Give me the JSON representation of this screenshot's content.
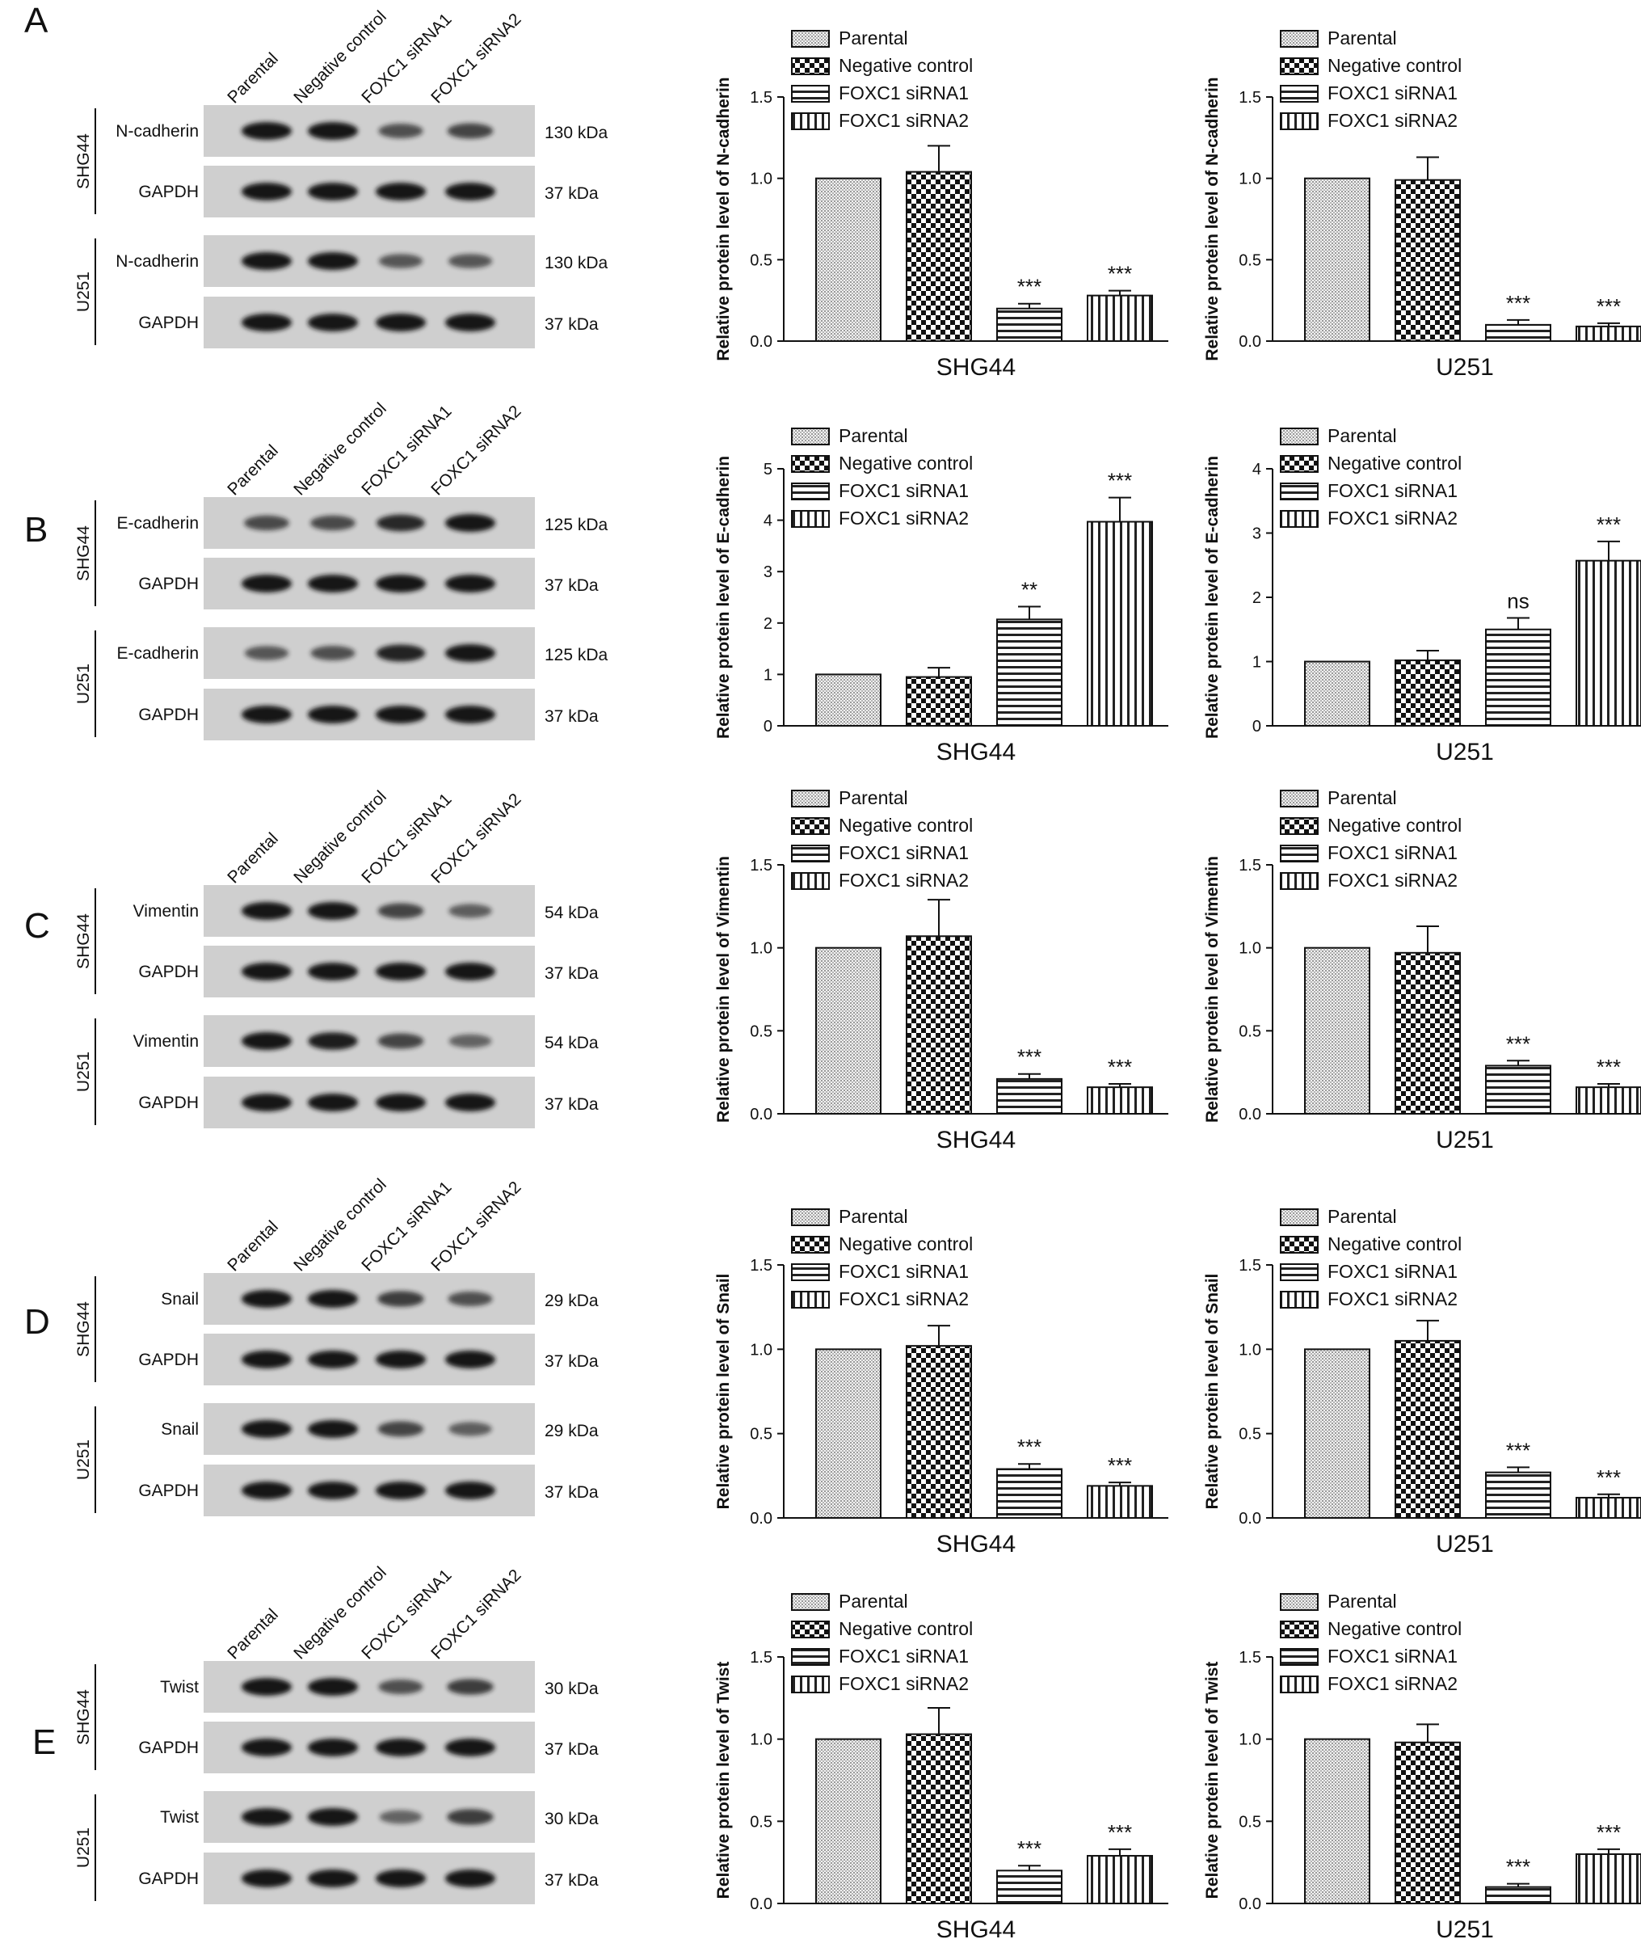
{
  "figure": {
    "lanes": [
      "Parental",
      "Negative control",
      "FOXC1 siRNA1",
      "FOXC1 siRNA2"
    ],
    "group_names": [
      "SHG44",
      "U251"
    ],
    "loading_control": "GAPDH",
    "legend_items": [
      "Parental",
      "Negative control",
      "FOXC1 siRNA1",
      "FOXC1 siRNA2"
    ],
    "colors": {
      "ink": "#111111",
      "blot_bg": "#cfcfcf",
      "band": "#141414"
    }
  },
  "panels": [
    {
      "letter": "A",
      "protein": "N-cadherin",
      "kda": "130 kDa",
      "gapdh_kda": "37 kDa",
      "band_intensity": {
        "SHG44": [
          1.0,
          1.0,
          0.55,
          0.65
        ],
        "U251": [
          1.0,
          1.0,
          0.5,
          0.5
        ]
      }
    },
    {
      "letter": "B",
      "protein": "E-cadherin",
      "kda": "125 kDa",
      "gapdh_kda": "37 kDa",
      "band_intensity": {
        "SHG44": [
          0.6,
          0.6,
          0.85,
          1.0
        ],
        "U251": [
          0.5,
          0.55,
          0.9,
          1.0
        ]
      }
    },
    {
      "letter": "C",
      "protein": "Vimentin",
      "kda": "54 kDa",
      "gapdh_kda": "37 kDa",
      "band_intensity": {
        "SHG44": [
          1.0,
          1.0,
          0.65,
          0.45
        ],
        "U251": [
          1.0,
          0.95,
          0.65,
          0.4
        ]
      }
    },
    {
      "letter": "D",
      "protein": "Snail",
      "kda": "29 kDa",
      "gapdh_kda": "37 kDa",
      "band_intensity": {
        "SHG44": [
          1.0,
          1.0,
          0.7,
          0.55
        ],
        "U251": [
          1.0,
          1.0,
          0.65,
          0.45
        ]
      }
    },
    {
      "letter": "E",
      "protein": "Twist",
      "kda": "30 kDa",
      "gapdh_kda": "37 kDa",
      "band_intensity": {
        "SHG44": [
          1.0,
          1.0,
          0.55,
          0.7
        ],
        "U251": [
          1.0,
          1.0,
          0.4,
          0.7
        ]
      }
    }
  ],
  "chart_data": [
    {
      "type": "bar",
      "panel": "A",
      "title": "",
      "xlabel": "SHG44",
      "ylabel": "Relative protein level of N-cadherin",
      "ylim": [
        0,
        1.5
      ],
      "yticks": [
        "0.0",
        "0.5",
        "1.0",
        "1.5"
      ],
      "categories": [
        "Parental",
        "Negative control",
        "FOXC1 siRNA1",
        "FOXC1 siRNA2"
      ],
      "values": [
        1.0,
        1.04,
        0.2,
        0.28
      ],
      "errors": [
        0,
        0.16,
        0.03,
        0.03
      ],
      "annotations": [
        "",
        "",
        "***",
        "***"
      ],
      "legend": "top"
    },
    {
      "type": "bar",
      "panel": "A",
      "title": "",
      "xlabel": "U251",
      "ylabel": "Relative protein level of N-cadherin",
      "ylim": [
        0,
        1.5
      ],
      "yticks": [
        "0.0",
        "0.5",
        "1.0",
        "1.5"
      ],
      "categories": [
        "Parental",
        "Negative control",
        "FOXC1 siRNA1",
        "FOXC1 siRNA2"
      ],
      "values": [
        1.0,
        0.99,
        0.1,
        0.09
      ],
      "errors": [
        0,
        0.14,
        0.03,
        0.02
      ],
      "annotations": [
        "",
        "",
        "***",
        "***"
      ],
      "legend": "top"
    },
    {
      "type": "bar",
      "panel": "B",
      "title": "",
      "xlabel": "SHG44",
      "ylabel": "Relative protein level of E-cadherin",
      "ylim": [
        0,
        5
      ],
      "yticks": [
        "0",
        "1",
        "2",
        "3",
        "4",
        "5"
      ],
      "categories": [
        "Parental",
        "Negative control",
        "FOXC1 siRNA1",
        "FOXC1 siRNA2"
      ],
      "values": [
        1.0,
        0.95,
        2.07,
        3.97
      ],
      "errors": [
        0,
        0.18,
        0.25,
        0.47
      ],
      "annotations": [
        "",
        "",
        "**",
        "***"
      ],
      "legend": "top"
    },
    {
      "type": "bar",
      "panel": "B",
      "title": "",
      "xlabel": "U251",
      "ylabel": "Relative protein level of E-cadherin",
      "ylim": [
        0,
        4
      ],
      "yticks": [
        "0",
        "1",
        "2",
        "3",
        "4"
      ],
      "categories": [
        "Parental",
        "Negative control",
        "FOXC1 siRNA1",
        "FOXC1 siRNA2"
      ],
      "values": [
        1.0,
        1.02,
        1.5,
        2.57
      ],
      "errors": [
        0,
        0.15,
        0.18,
        0.3
      ],
      "annotations": [
        "",
        "",
        "ns",
        "***"
      ],
      "legend": "top"
    },
    {
      "type": "bar",
      "panel": "C",
      "title": "",
      "xlabel": "SHG44",
      "ylabel": "Relative protein level of Vimentin",
      "ylim": [
        0,
        1.5
      ],
      "yticks": [
        "0.0",
        "0.5",
        "1.0",
        "1.5"
      ],
      "categories": [
        "Parental",
        "Negative control",
        "FOXC1 siRNA1",
        "FOXC1 siRNA2"
      ],
      "values": [
        1.0,
        1.07,
        0.21,
        0.16
      ],
      "errors": [
        0,
        0.22,
        0.03,
        0.02
      ],
      "annotations": [
        "",
        "",
        "***",
        "***"
      ],
      "legend": "top"
    },
    {
      "type": "bar",
      "panel": "C",
      "title": "",
      "xlabel": "U251",
      "ylabel": "Relative protein level of Vimentin",
      "ylim": [
        0,
        1.5
      ],
      "yticks": [
        "0.0",
        "0.5",
        "1.0",
        "1.5"
      ],
      "categories": [
        "Parental",
        "Negative control",
        "FOXC1 siRNA1",
        "FOXC1 siRNA2"
      ],
      "values": [
        1.0,
        0.97,
        0.29,
        0.16
      ],
      "errors": [
        0,
        0.16,
        0.03,
        0.02
      ],
      "annotations": [
        "",
        "",
        "***",
        "***"
      ],
      "legend": "top"
    },
    {
      "type": "bar",
      "panel": "D",
      "title": "",
      "xlabel": "SHG44",
      "ylabel": "Relative protein level of Snail",
      "ylim": [
        0,
        1.5
      ],
      "yticks": [
        "0.0",
        "0.5",
        "1.0",
        "1.5"
      ],
      "categories": [
        "Parental",
        "Negative control",
        "FOXC1 siRNA1",
        "FOXC1 siRNA2"
      ],
      "values": [
        1.0,
        1.02,
        0.29,
        0.19
      ],
      "errors": [
        0,
        0.12,
        0.03,
        0.02
      ],
      "annotations": [
        "",
        "",
        "***",
        "***"
      ],
      "legend": "top"
    },
    {
      "type": "bar",
      "panel": "D",
      "title": "",
      "xlabel": "U251",
      "ylabel": "Relative protein level of Snail",
      "ylim": [
        0,
        1.5
      ],
      "yticks": [
        "0.0",
        "0.5",
        "1.0",
        "1.5"
      ],
      "categories": [
        "Parental",
        "Negative control",
        "FOXC1 siRNA1",
        "FOXC1 siRNA2"
      ],
      "values": [
        1.0,
        1.05,
        0.27,
        0.12
      ],
      "errors": [
        0,
        0.12,
        0.03,
        0.02
      ],
      "annotations": [
        "",
        "",
        "***",
        "***"
      ],
      "legend": "top"
    },
    {
      "type": "bar",
      "panel": "E",
      "title": "",
      "xlabel": "SHG44",
      "ylabel": "Relative protein level of Twist",
      "ylim": [
        0,
        1.5
      ],
      "yticks": [
        "0.0",
        "0.5",
        "1.0",
        "1.5"
      ],
      "categories": [
        "Parental",
        "Negative control",
        "FOXC1 siRNA1",
        "FOXC1 siRNA2"
      ],
      "values": [
        1.0,
        1.03,
        0.2,
        0.29
      ],
      "errors": [
        0,
        0.16,
        0.03,
        0.04
      ],
      "annotations": [
        "",
        "",
        "***",
        "***"
      ],
      "legend": "top"
    },
    {
      "type": "bar",
      "panel": "E",
      "title": "",
      "xlabel": "U251",
      "ylabel": "Relative protein level of Twist",
      "ylim": [
        0,
        1.5
      ],
      "yticks": [
        "0.0",
        "0.5",
        "1.0",
        "1.5"
      ],
      "categories": [
        "Parental",
        "Negative control",
        "FOXC1 siRNA1",
        "FOXC1 siRNA2"
      ],
      "values": [
        1.0,
        0.98,
        0.1,
        0.3
      ],
      "errors": [
        0,
        0.11,
        0.02,
        0.03
      ],
      "annotations": [
        "",
        "",
        "***",
        "***"
      ],
      "legend": "top"
    }
  ]
}
